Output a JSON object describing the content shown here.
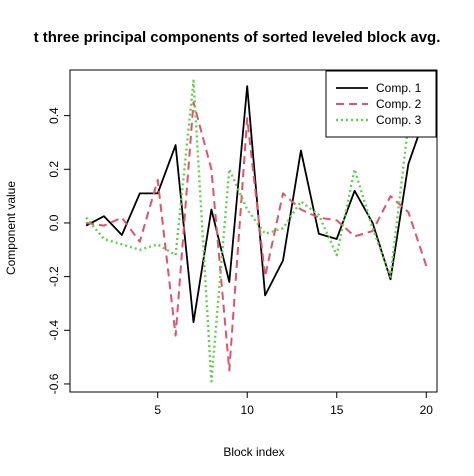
{
  "chart_data": {
    "type": "line",
    "title": "t three principal components of sorted leveled block avg.",
    "xlabel": "Block index",
    "ylabel": "Component value",
    "xlim": [
      0.1,
      20.6
    ],
    "ylim": [
      -0.63,
      0.57
    ],
    "xticks": [
      5,
      10,
      15,
      20
    ],
    "yticks": [
      -0.6,
      -0.4,
      -0.2,
      0.0,
      0.2,
      0.4
    ],
    "ytick_labels": [
      "-0.6",
      "-0.4",
      "-0.2",
      "0.0",
      "0.2",
      "0.4"
    ],
    "grid": false,
    "legend_position": "top-right",
    "x": [
      1,
      2,
      3,
      4,
      5,
      6,
      7,
      8,
      9,
      10,
      11,
      12,
      13,
      14,
      15,
      16,
      17,
      18,
      19,
      20
    ],
    "series": [
      {
        "name": "Comp. 1",
        "color": "#000000",
        "dash": "solid",
        "values": [
          -0.01,
          0.025,
          -0.045,
          0.11,
          0.11,
          0.29,
          -0.37,
          0.05,
          -0.22,
          0.51,
          -0.27,
          -0.14,
          0.27,
          -0.04,
          -0.06,
          0.12,
          0.0,
          -0.21,
          0.22,
          0.41
        ]
      },
      {
        "name": "Comp. 2",
        "color": "#DF536B",
        "dash": "dashed",
        "values": [
          0.0,
          -0.01,
          0.02,
          -0.07,
          0.16,
          -0.42,
          0.45,
          0.2,
          -0.55,
          0.39,
          -0.2,
          0.11,
          0.05,
          0.02,
          0.01,
          -0.05,
          -0.03,
          0.1,
          0.04,
          -0.16
        ]
      },
      {
        "name": "Comp. 3",
        "color": "#61D04F",
        "dash": "dotted",
        "values": [
          0.02,
          -0.06,
          -0.08,
          -0.1,
          -0.08,
          -0.12,
          0.53,
          -0.59,
          0.2,
          0.05,
          -0.04,
          -0.02,
          0.08,
          0.03,
          -0.12,
          0.2,
          -0.02,
          -0.2,
          0.37,
          0.42
        ]
      }
    ]
  }
}
